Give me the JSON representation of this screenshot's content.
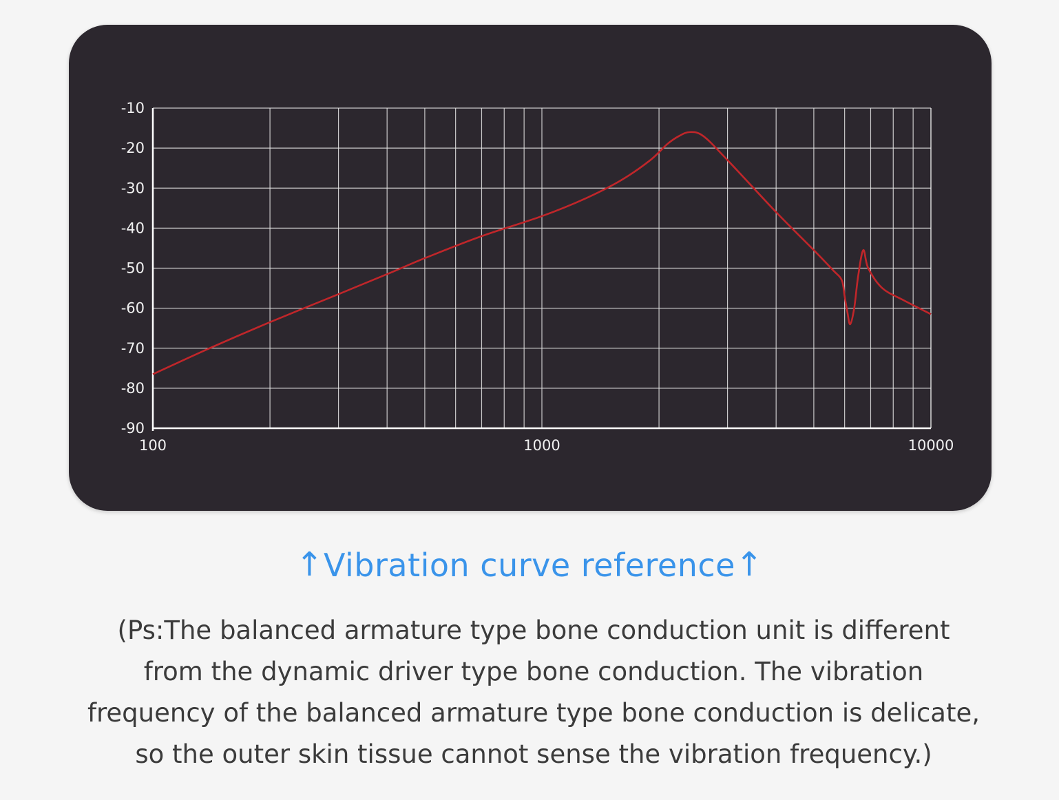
{
  "chart_data": {
    "type": "line",
    "title": "",
    "xlabel": "",
    "ylabel": "",
    "x_scale": "log",
    "xlim": [
      100,
      10000
    ],
    "ylim": [
      -90,
      -10
    ],
    "x_tick_labels": [
      "100",
      "1000",
      "10000"
    ],
    "y_tick_labels": [
      "-10",
      "-20",
      "-30",
      "-40",
      "-50",
      "-60",
      "-70",
      "-80",
      "-90"
    ],
    "grid": true,
    "legend": "none",
    "series": [
      {
        "color": "#c0262a",
        "x": [
          100,
          140,
          200,
          300,
          400,
          500,
          700,
          1000,
          1300,
          1600,
          1900,
          2100,
          2250,
          2400,
          2600,
          3000,
          4000,
          5000,
          5600,
          5900,
          6000,
          6100,
          6200,
          6350,
          6500,
          6700,
          6900,
          7500,
          8500,
          10000
        ],
        "y": [
          -76.5,
          -70,
          -63.5,
          -56.5,
          -51.5,
          -47.5,
          -42,
          -37,
          -32.5,
          -28,
          -23,
          -19,
          -17,
          -16,
          -17,
          -23,
          -36,
          -45.5,
          -50.5,
          -53,
          -57,
          -61,
          -64,
          -60,
          -52,
          -45.5,
          -50,
          -55,
          -58,
          -61.5
        ]
      }
    ]
  },
  "caption": {
    "arrow_left": "↑",
    "text": "Vibration curve reference",
    "arrow_right": "↑"
  },
  "note": {
    "lines": [
      "(Ps:The balanced armature type bone conduction unit is different",
      "from the dynamic driver type bone conduction. The vibration",
      "frequency of the balanced armature type bone conduction is delicate,",
      "so the outer skin tissue cannot sense the vibration frequency.)"
    ]
  },
  "colors": {
    "card_background": "#2c272e",
    "grid": "#e6e6e6",
    "curve": "#c0262a",
    "caption": "#3a94ea",
    "note_text": "#3b3b3b",
    "page_background": "#f5f5f5"
  }
}
